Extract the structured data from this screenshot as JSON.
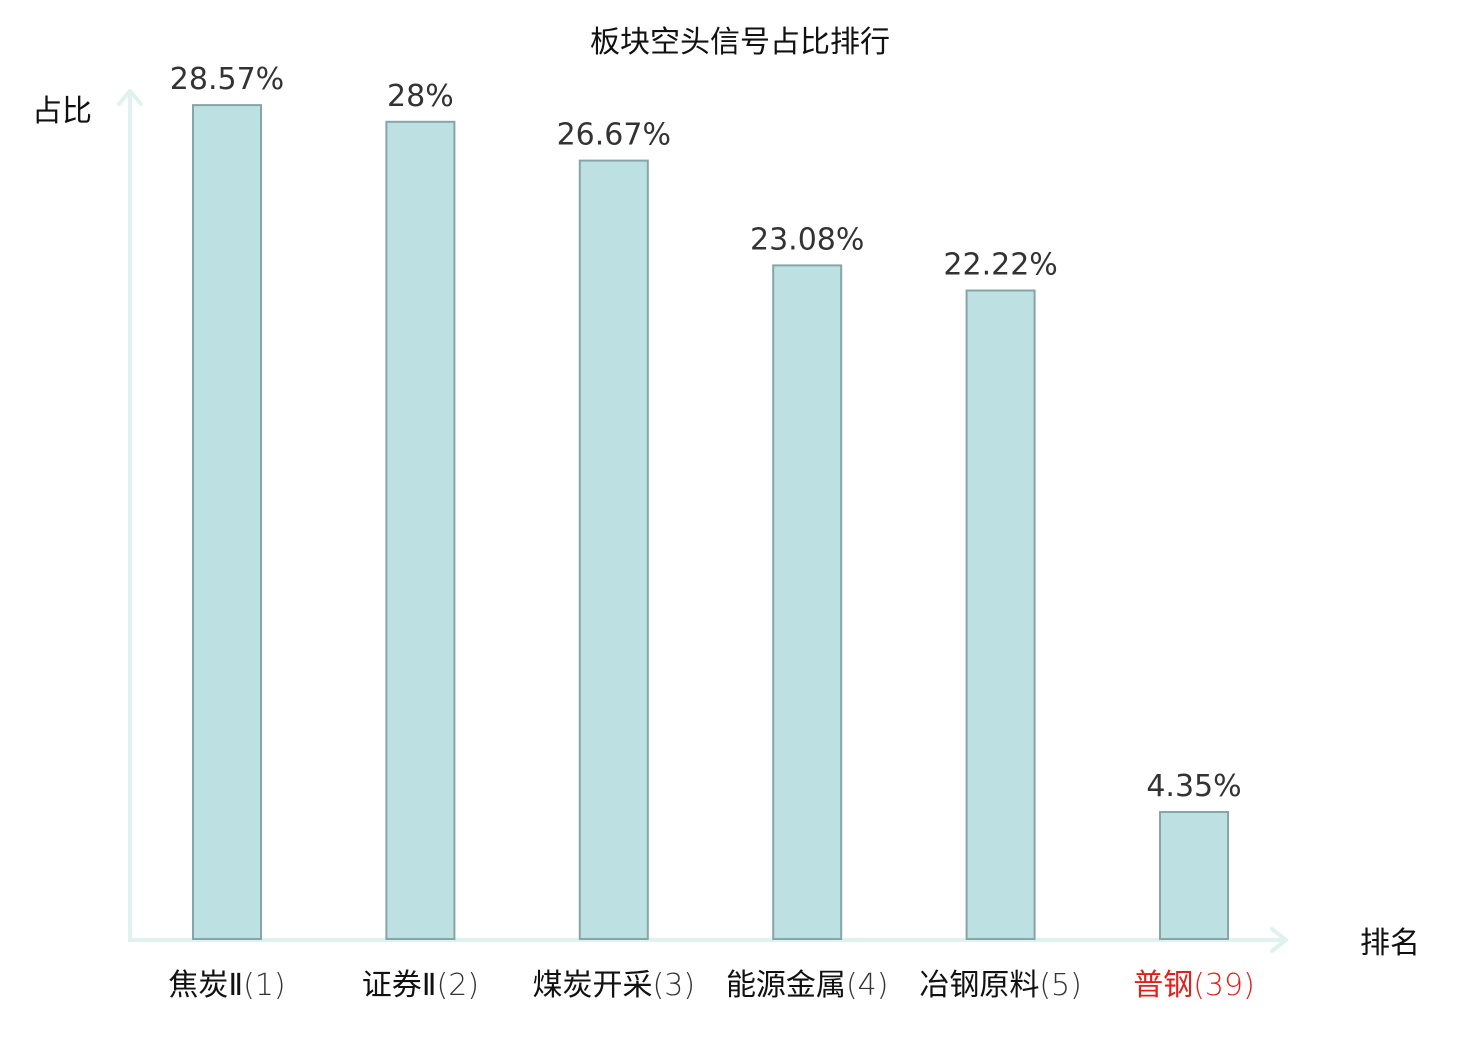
{
  "chart_data": {
    "type": "bar",
    "title": "板块空头信号占比排行",
    "ylabel": "占比",
    "xlabel": "排名",
    "categories": [
      {
        "name": "焦炭Ⅱ",
        "rank": "(1)"
      },
      {
        "name": "证券Ⅱ",
        "rank": "(2)"
      },
      {
        "name": "煤炭开采",
        "rank": "(3)"
      },
      {
        "name": "能源金属",
        "rank": "(4)"
      },
      {
        "name": "冶钢原料",
        "rank": "(5)"
      },
      {
        "name": "普钢",
        "rank": "(39)",
        "highlight": true
      }
    ],
    "values": [
      28.57,
      28,
      26.67,
      23.08,
      22.22,
      4.35
    ],
    "value_labels": [
      "28.57%",
      "28%",
      "26.67%",
      "23.08%",
      "22.22%",
      "4.35%"
    ],
    "value_unit": "%",
    "ylim": [
      0,
      29.5
    ],
    "grid": false,
    "legend": "none",
    "colors": {
      "bar_fill": "#bde0e3",
      "bar_stroke": "#87a4a7",
      "axis": "#dff2ef",
      "text": "#111111",
      "value_text": "#333333",
      "highlight": "#e0201c"
    }
  }
}
